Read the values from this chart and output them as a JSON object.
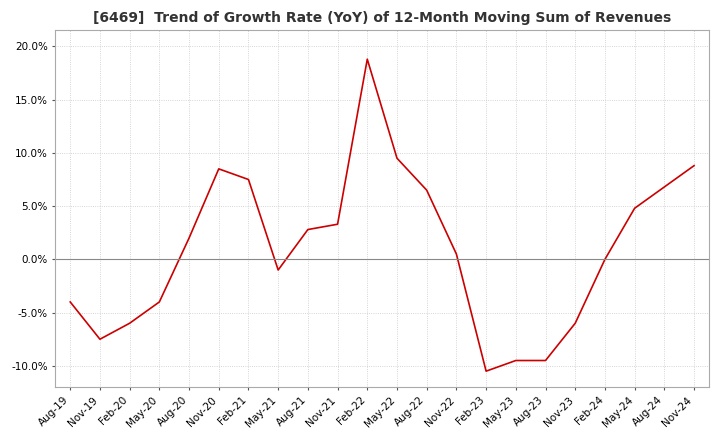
{
  "title": "[6469]  Trend of Growth Rate (YoY) of 12-Month Moving Sum of Revenues",
  "title_fontsize": 10,
  "line_color": "#cc0000",
  "background_color": "#ffffff",
  "grid_color": "#c8c8c8",
  "ylim": [
    -0.12,
    0.215
  ],
  "yticks": [
    -0.1,
    -0.05,
    0.0,
    0.05,
    0.1,
    0.15,
    0.2
  ],
  "x_labels": [
    "Aug-19",
    "Nov-19",
    "Feb-20",
    "May-20",
    "Aug-20",
    "Nov-20",
    "Feb-21",
    "May-21",
    "Aug-21",
    "Nov-21",
    "Feb-22",
    "May-22",
    "Aug-22",
    "Nov-22",
    "Feb-23",
    "May-23",
    "Aug-23",
    "Nov-23",
    "Feb-24",
    "May-24",
    "Aug-24",
    "Nov-24"
  ],
  "y_values": [
    -0.04,
    -0.075,
    -0.06,
    -0.04,
    0.02,
    0.085,
    0.075,
    -0.01,
    0.028,
    0.033,
    0.188,
    0.095,
    0.065,
    0.005,
    -0.105,
    -0.095,
    -0.095,
    -0.06,
    0.0,
    0.048,
    0.068,
    0.088
  ],
  "label_rotation": 45,
  "label_fontsize": 7.5,
  "tick_color": "#555555",
  "spine_color": "#aaaaaa",
  "zero_line_color": "#888888"
}
